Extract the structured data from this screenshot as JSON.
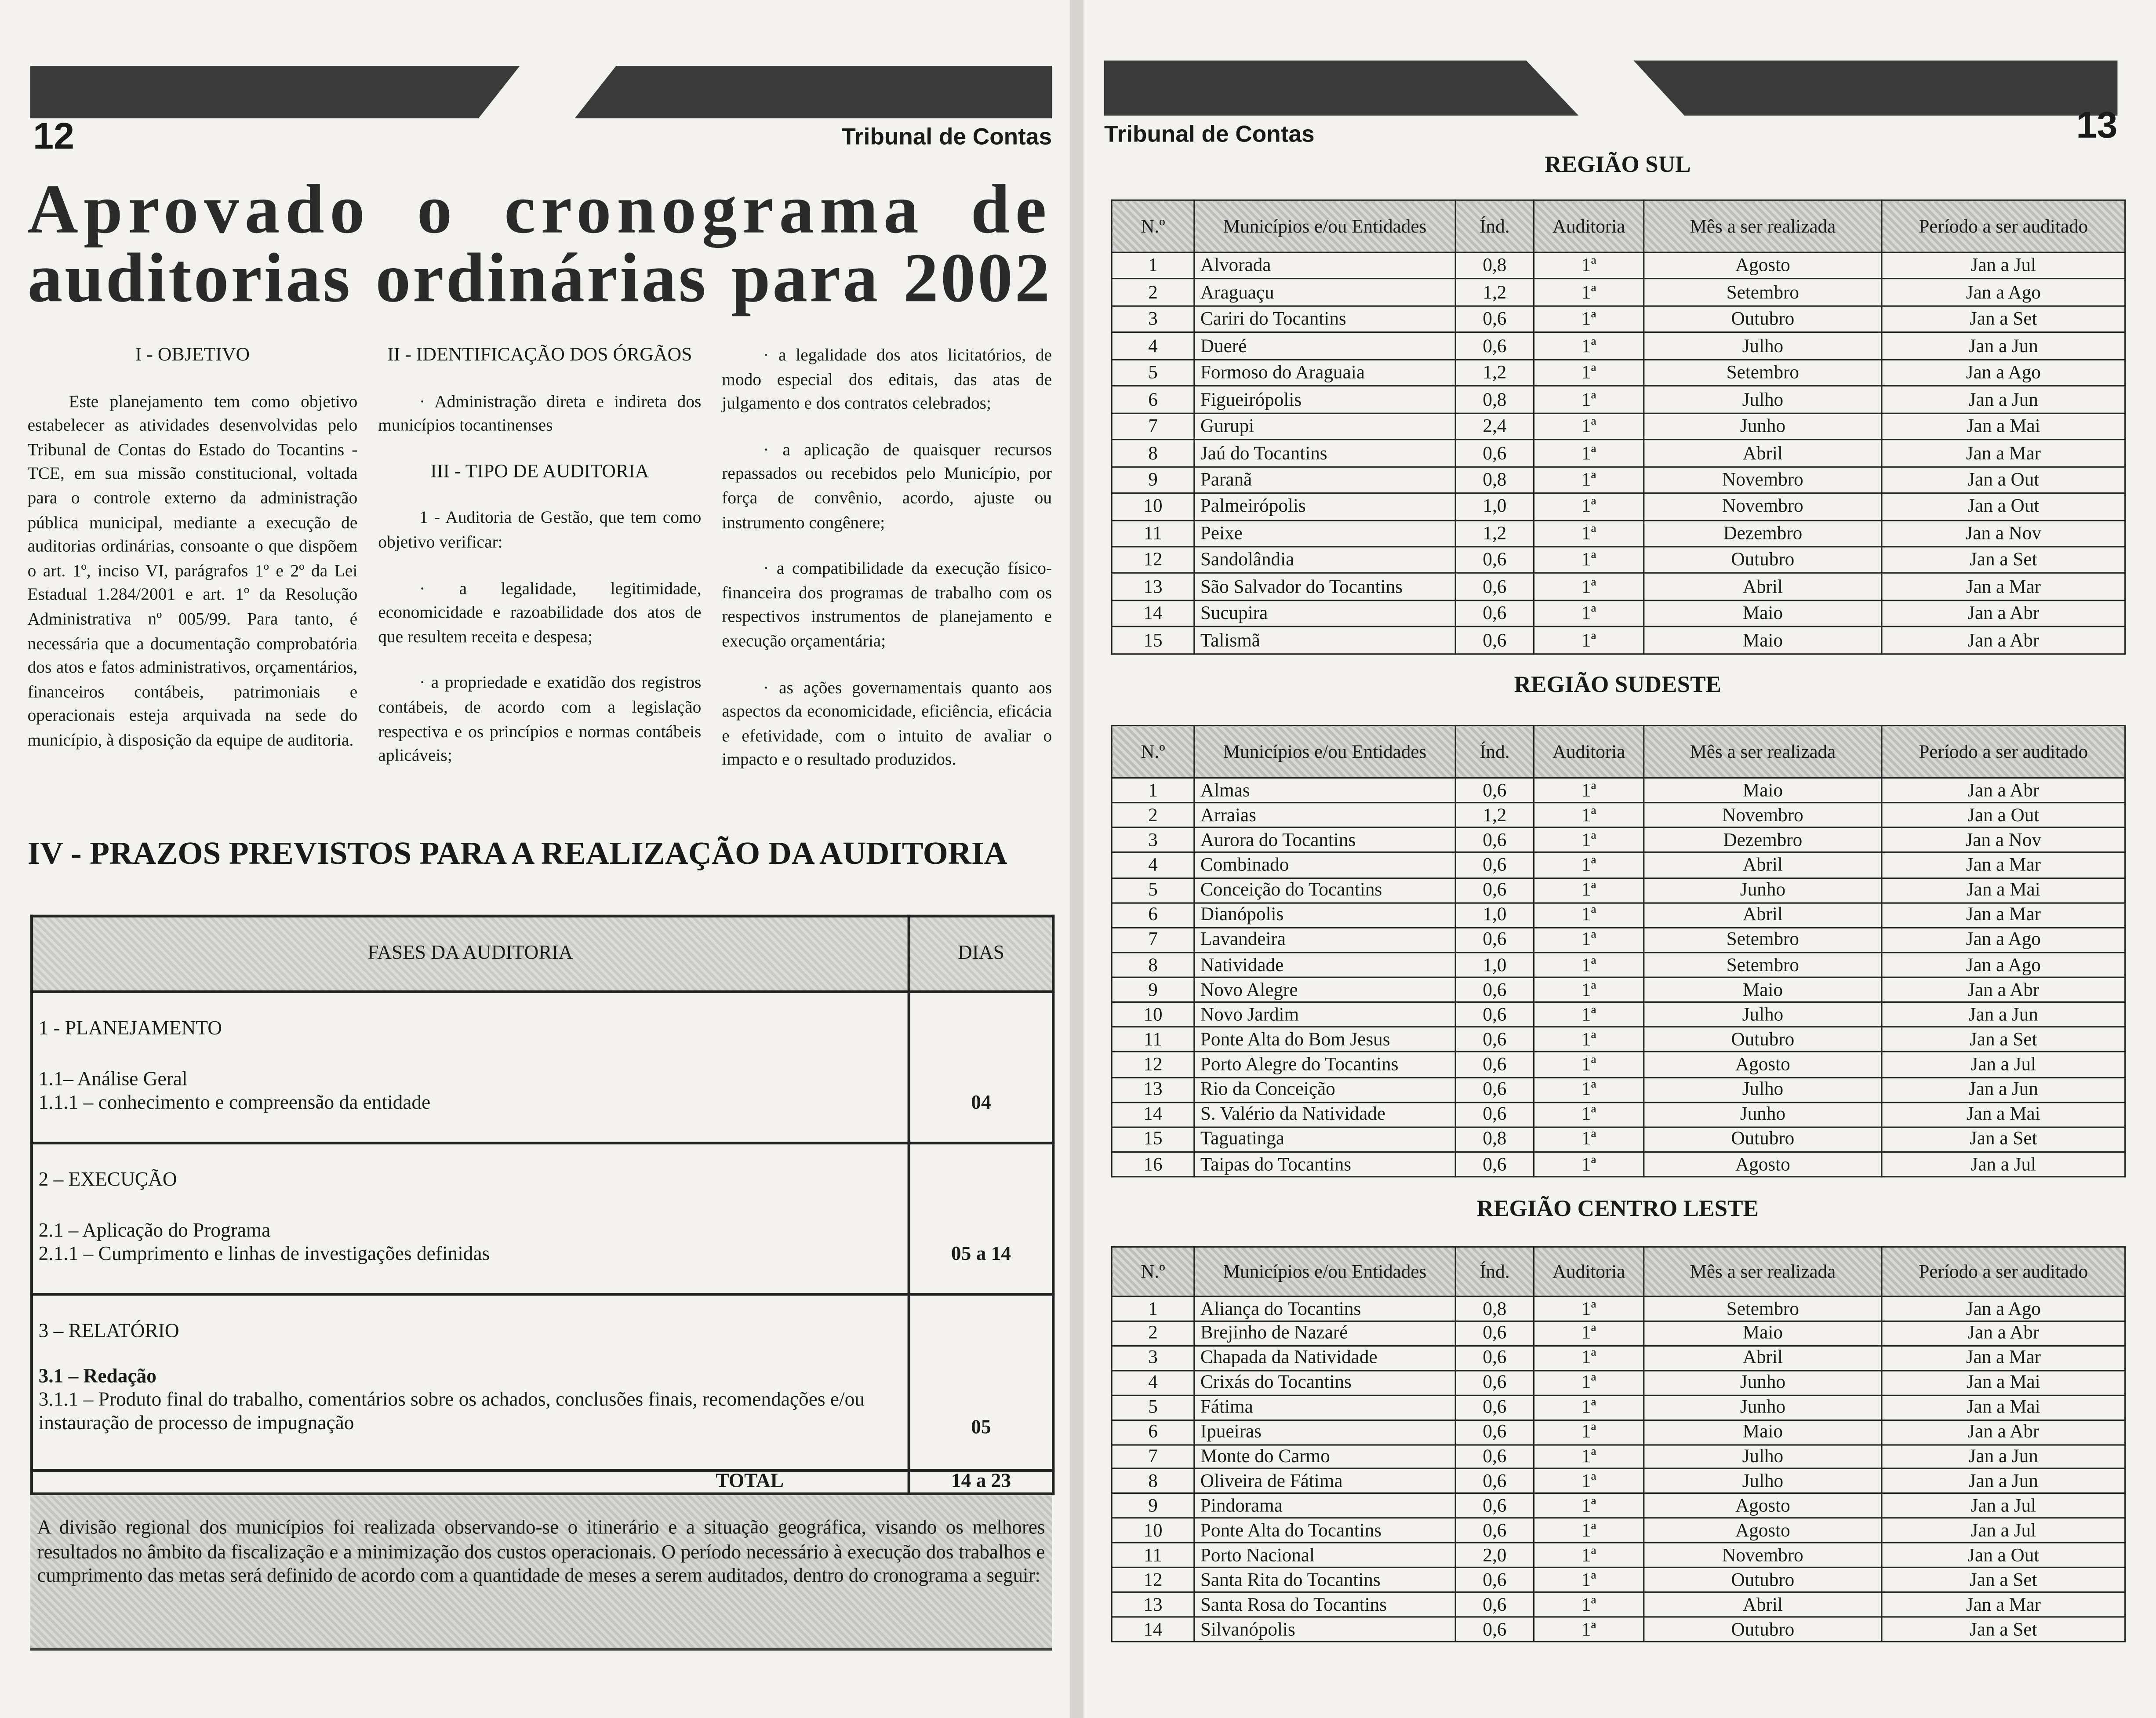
{
  "left_page": {
    "page_number": "12",
    "header": "Tribunal de Contas",
    "title_lines": [
      "Aprovado o cronograma de",
      "auditorias ordinárias para 2002"
    ],
    "columns": [
      [
        {
          "heading": "I - OBJETIVO"
        },
        {
          "text": "Este planejamento tem como objetivo estabelecer as atividades desenvolvidas pelo Tribunal de Contas do Estado do Tocantins - TCE, em sua missão constitucional, voltada para o controle externo da administração pública municipal, mediante a execução de auditorias ordinárias, consoante o que dispõem o art. 1º, inciso VI, parágrafos 1º e 2º da Lei Estadual 1.284/2001 e art. 1º da Resolução Administrativa nº 005/99. Para tanto, é necessária que a documentação comprobatória dos atos e fatos administrativos, orçamentários, financeiros contábeis, patrimoniais e operacionais esteja arquivada na sede do município, à disposição da equipe de auditoria."
        }
      ],
      [
        {
          "heading": "II - IDENTIFICAÇÃO DOS ÓRGÃOS"
        },
        {
          "text": "· Administração direta e indireta dos municípios tocantinenses"
        },
        {
          "heading": "III - TIPO DE AUDITORIA"
        },
        {
          "text": "1 - Auditoria de Gestão, que tem como objetivo verificar:"
        },
        {
          "text": "· a legalidade, legitimidade, economicidade e razoabilidade dos atos de que resultem receita e despesa;"
        },
        {
          "text": "· a propriedade e exatidão dos registros contábeis, de acordo com a legislação respectiva e os princípios e normas contábeis aplicáveis;"
        }
      ],
      [
        {
          "text": "· a legalidade dos atos licitatórios, de modo especial dos editais, das atas de julgamento e dos contratos celebrados;"
        },
        {
          "text": "· a aplicação de quaisquer recursos repassados ou recebidos pelo Município, por força de convênio, acordo, ajuste ou instrumento congênere;"
        },
        {
          "text": "· a compatibilidade da execução físico-financeira dos programas de trabalho com os respectivos instrumentos de planejamento e execução orçamentária;"
        },
        {
          "text": "· as ações governamentais quanto aos aspectos da economicidade, eficiência, eficácia e efetividade, com o intuito de avaliar o impacto e o resultado produzidos."
        }
      ]
    ],
    "section_title": "IV - PRAZOS PREVISTOS PARA A REALIZAÇÃO DA AUDITORIA",
    "phases_table": {
      "header": [
        "FASES DA AUDITORIA",
        "DIAS"
      ],
      "phases": [
        {
          "title": "1 - PLANEJAMENTO",
          "lines": [
            "1.1– Análise Geral",
            "1.1.1 – conhecimento e compreensão da entidade"
          ],
          "days": "04"
        },
        {
          "title": "2 – EXECUÇÃO",
          "lines": [
            "2.1 – Aplicação do Programa",
            "2.1.1 – Cumprimento e linhas de investigações definidas"
          ],
          "days": "05 a 14"
        },
        {
          "title": "3 – RELATÓRIO",
          "lines": [
            "3.1 – Redação",
            "3.1.1 – Produto final do trabalho, comentários sobre os achados, conclusões finais, recomendações e/ou instauração de processo de impugnação"
          ],
          "days": "05"
        }
      ],
      "total": [
        "TOTAL",
        "14 a 23"
      ]
    },
    "footer": "A divisão regional dos municípios foi realizada observando-se o itinerário e a situação geográfica, visando os melhores resultados no âmbito da fiscalização e a minimização dos custos operacionais. O período necessário à execução dos trabalhos e cumprimento das metas será definido de acordo com a quantidade de meses a serem auditados, dentro do cronograma a seguir:"
  },
  "right_page": {
    "page_number": "13",
    "header": "Tribunal de Contas",
    "regions": [
      {
        "title": "REGIÃO SUL",
        "headers": [
          "N.º",
          "Municípios e/ou Entidades",
          "Índ.",
          "Auditoria",
          "Mês a ser realizada",
          "Período a ser auditado"
        ],
        "rows": [
          [
            "1",
            "Alvorada",
            "0,8",
            "1ª",
            "Agosto",
            "Jan a Jul"
          ],
          [
            "2",
            "Araguaçu",
            "1,2",
            "1ª",
            "Setembro",
            "Jan a Ago"
          ],
          [
            "3",
            "Cariri do Tocantins",
            "0,6",
            "1ª",
            "Outubro",
            "Jan a Set"
          ],
          [
            "4",
            "Dueré",
            "0,6",
            "1ª",
            "Julho",
            "Jan a Jun"
          ],
          [
            "5",
            "Formoso do Araguaia",
            "1,2",
            "1ª",
            "Setembro",
            "Jan a Ago"
          ],
          [
            "6",
            "Figueirópolis",
            "0,8",
            "1ª",
            "Julho",
            "Jan a Jun"
          ],
          [
            "7",
            "Gurupi",
            "2,4",
            "1ª",
            "Junho",
            "Jan a Mai"
          ],
          [
            "8",
            "Jaú do Tocantins",
            "0,6",
            "1ª",
            "Abril",
            "Jan a Mar"
          ],
          [
            "9",
            "Paranã",
            "0,8",
            "1ª",
            "Novembro",
            "Jan a Out"
          ],
          [
            "10",
            "Palmeirópolis",
            "1,0",
            "1ª",
            "Novembro",
            "Jan a Out"
          ],
          [
            "11",
            "Peixe",
            "1,2",
            "1ª",
            "Dezembro",
            "Jan a Nov"
          ],
          [
            "12",
            "Sandolândia",
            "0,6",
            "1ª",
            "Outubro",
            "Jan a Set"
          ],
          [
            "13",
            "São Salvador do Tocantins",
            "0,6",
            "1ª",
            "Abril",
            "Jan a Mar"
          ],
          [
            "14",
            "Sucupira",
            "0,6",
            "1ª",
            "Maio",
            "Jan a Abr"
          ],
          [
            "15",
            "Talismã",
            "0,6",
            "1ª",
            "Maio",
            "Jan a Abr"
          ]
        ]
      },
      {
        "title": "REGIÃO SUDESTE",
        "headers": [
          "N.º",
          "Municípios e/ou Entidades",
          "Índ.",
          "Auditoria",
          "Mês a ser realizada",
          "Período a ser auditado"
        ],
        "rows": [
          [
            "1",
            "Almas",
            "0,6",
            "1ª",
            "Maio",
            "Jan a Abr"
          ],
          [
            "2",
            "Arraias",
            "1,2",
            "1ª",
            "Novembro",
            "Jan a Out"
          ],
          [
            "3",
            "Aurora do Tocantins",
            "0,6",
            "1ª",
            "Dezembro",
            "Jan a Nov"
          ],
          [
            "4",
            "Combinado",
            "0,6",
            "1ª",
            "Abril",
            "Jan a Mar"
          ],
          [
            "5",
            "Conceição do Tocantins",
            "0,6",
            "1ª",
            "Junho",
            "Jan a Mai"
          ],
          [
            "6",
            "Dianópolis",
            "1,0",
            "1ª",
            "Abril",
            "Jan a Mar"
          ],
          [
            "7",
            "Lavandeira",
            "0,6",
            "1ª",
            "Setembro",
            "Jan a Ago"
          ],
          [
            "8",
            "Natividade",
            "1,0",
            "1ª",
            "Setembro",
            "Jan a Ago"
          ],
          [
            "9",
            "Novo Alegre",
            "0,6",
            "1ª",
            "Maio",
            "Jan a Abr"
          ],
          [
            "10",
            "Novo Jardim",
            "0,6",
            "1ª",
            "Julho",
            "Jan a Jun"
          ],
          [
            "11",
            "Ponte Alta do Bom Jesus",
            "0,6",
            "1ª",
            "Outubro",
            "Jan a Set"
          ],
          [
            "12",
            "Porto Alegre do Tocantins",
            "0,6",
            "1ª",
            "Agosto",
            "Jan a Jul"
          ],
          [
            "13",
            "Rio da Conceição",
            "0,6",
            "1ª",
            "Julho",
            "Jan a Jun"
          ],
          [
            "14",
            "S. Valério da Natividade",
            "0,6",
            "1ª",
            "Junho",
            "Jan a Mai"
          ],
          [
            "15",
            "Taguatinga",
            "0,8",
            "1ª",
            "Outubro",
            "Jan a Set"
          ],
          [
            "16",
            "Taipas do Tocantins",
            "0,6",
            "1ª",
            "Agosto",
            "Jan a Jul"
          ]
        ]
      },
      {
        "title": "REGIÃO CENTRO LESTE",
        "headers": [
          "N.º",
          "Municípios e/ou Entidades",
          "Índ.",
          "Auditoria",
          "Mês a ser realizada",
          "Período a ser auditado"
        ],
        "rows": [
          [
            "1",
            "Aliança do Tocantins",
            "0,8",
            "1ª",
            "Setembro",
            "Jan a Ago"
          ],
          [
            "2",
            "Brejinho de Nazaré",
            "0,6",
            "1ª",
            "Maio",
            "Jan a Abr"
          ],
          [
            "3",
            "Chapada da Natividade",
            "0,6",
            "1ª",
            "Abril",
            "Jan a Mar"
          ],
          [
            "4",
            "Crixás do Tocantins",
            "0,6",
            "1ª",
            "Junho",
            "Jan a Mai"
          ],
          [
            "5",
            "Fátima",
            "0,6",
            "1ª",
            "Junho",
            "Jan a Mai"
          ],
          [
            "6",
            "Ipueiras",
            "0,6",
            "1ª",
            "Maio",
            "Jan a Abr"
          ],
          [
            "7",
            "Monte do Carmo",
            "0,6",
            "1ª",
            "Julho",
            "Jan a Jun"
          ],
          [
            "8",
            "Oliveira de Fátima",
            "0,6",
            "1ª",
            "Julho",
            "Jan a Jun"
          ],
          [
            "9",
            "Pindorama",
            "0,6",
            "1ª",
            "Agosto",
            "Jan a Jul"
          ],
          [
            "10",
            "Ponte Alta do Tocantins",
            "0,6",
            "1ª",
            "Agosto",
            "Jan a Jul"
          ],
          [
            "11",
            "Porto Nacional",
            "2,0",
            "1ª",
            "Novembro",
            "Jan a Out"
          ],
          [
            "12",
            "Santa Rita do Tocantins",
            "0,6",
            "1ª",
            "Outubro",
            "Jan a Set"
          ],
          [
            "13",
            "Santa Rosa do Tocantins",
            "0,6",
            "1ª",
            "Abril",
            "Jan a Mar"
          ],
          [
            "14",
            "Silvanópolis",
            "0,6",
            "1ª",
            "Outubro",
            "Jan a Set"
          ]
        ]
      }
    ]
  }
}
